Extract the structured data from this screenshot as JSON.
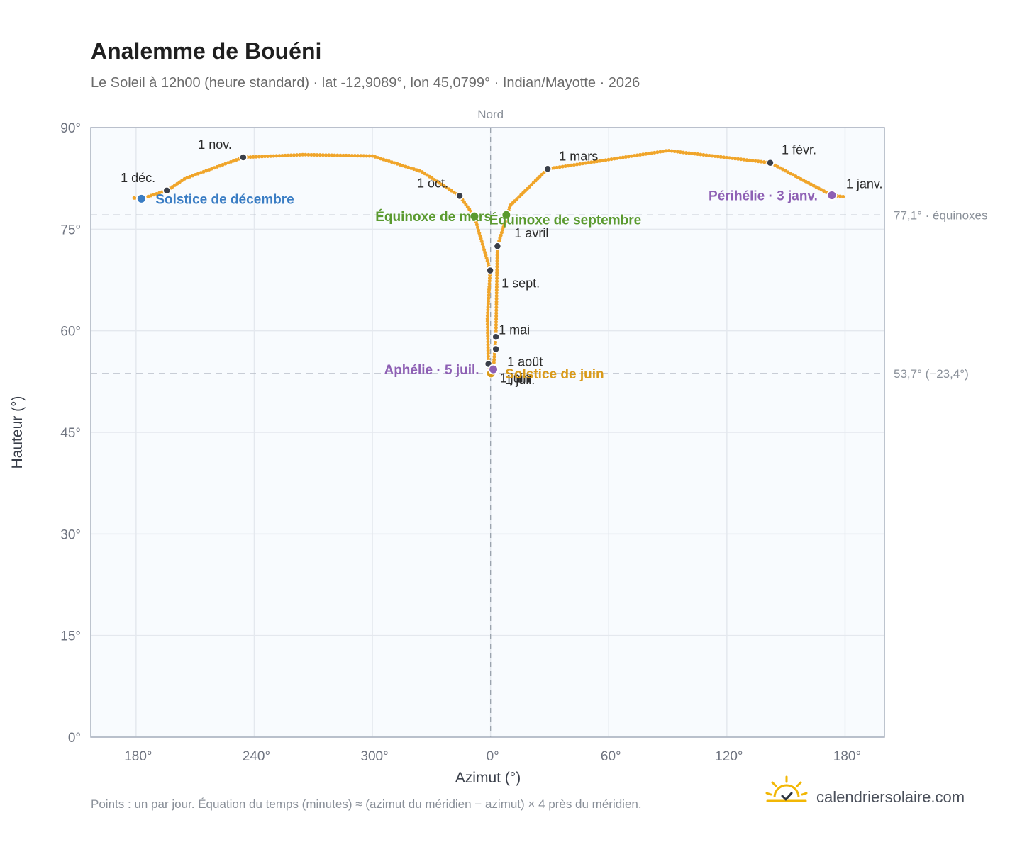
{
  "header": {
    "title": "Analemme de Bouéni",
    "subtitle": "Le Soleil à 12h00 (heure standard) · lat -12,9089°, lon 45,0799° · Indian/Mayotte · 2026"
  },
  "colors": {
    "analemma": "#f0a52a",
    "month_marker": "#3a3f4a",
    "equinox": "#5a9a2f",
    "solstice_december": "#3a7dc4",
    "solstice_june": "#d99a1a",
    "apsis": "#8e60b4",
    "grid": "#e4e8ee",
    "plot_background": "#f8fbfe",
    "plot_border": "#a7b0bd"
  },
  "chart_data": {
    "type": "scatter",
    "title": "Analemme de Bouéni",
    "xlabel": "Azimut (°)",
    "ylabel": "Hauteur (°)",
    "x_ticks": [
      {
        "az": 180,
        "label": "180°"
      },
      {
        "az": 240,
        "label": "240°"
      },
      {
        "az": 300,
        "label": "300°"
      },
      {
        "az": 0,
        "label": "0°"
      },
      {
        "az": 60,
        "label": "60°"
      },
      {
        "az": 120,
        "label": "120°"
      },
      {
        "az": 180,
        "label": "180°",
        "side": "east"
      }
    ],
    "y_ticks": [
      {
        "value": 0,
        "label": "0°"
      },
      {
        "value": 15,
        "label": "15°"
      },
      {
        "value": 30,
        "label": "30°"
      },
      {
        "value": 45,
        "label": "45°"
      },
      {
        "value": 60,
        "label": "60°"
      },
      {
        "value": 75,
        "label": "75°"
      },
      {
        "value": 90,
        "label": "90°"
      }
    ],
    "ylim": [
      0,
      90
    ],
    "x_range_offset_from_north": [
      -203,
      200
    ],
    "grid": true,
    "north_line": {
      "label": "Nord"
    },
    "reference_lines": [
      {
        "altitude": 77.1,
        "label": "77,1° · équinoxes"
      },
      {
        "altitude": 53.7,
        "label": "53,7° (−23,4°)"
      }
    ],
    "path_vertices": [
      {
        "az": 179,
        "alt": 79.8
      },
      {
        "az": 173.3,
        "alt": 80.0
      },
      {
        "az": 142,
        "alt": 84.8
      },
      {
        "az": 90,
        "alt": 86.6
      },
      {
        "az": 29,
        "alt": 83.9
      },
      {
        "az": 10,
        "alt": 78.5
      },
      {
        "az": 3.5,
        "alt": 72.5
      },
      {
        "az": 2.7,
        "alt": 59.1
      },
      {
        "az": 1.4,
        "alt": 54.3
      },
      {
        "az": 0.2,
        "alt": 53.7
      },
      {
        "az": -1.1,
        "alt": 55.1
      },
      {
        "az": -1.6,
        "alt": 61.9
      },
      {
        "az": -0.2,
        "alt": 68.9
      },
      {
        "az": -8.2,
        "alt": 76.9
      },
      {
        "az": -15.7,
        "alt": 79.9
      },
      {
        "az": -35,
        "alt": 83.5
      },
      {
        "az": -60,
        "alt": 85.8
      },
      {
        "az": -95,
        "alt": 86.0
      },
      {
        "az": -125.6,
        "alt": 85.6
      },
      {
        "az": -155,
        "alt": 82.5
      },
      {
        "az": -164.4,
        "alt": 80.7
      },
      {
        "az": -177.3,
        "alt": 79.5
      },
      {
        "az": -181,
        "alt": 79.6
      }
    ],
    "month_markers": [
      {
        "label": "1 janv.",
        "az": 173.3,
        "alt": 80.0,
        "anchor": "start",
        "dx": 20,
        "dy": -10
      },
      {
        "label": "1 févr.",
        "az": 142.0,
        "alt": 84.8,
        "anchor": "start",
        "dx": 16,
        "dy": -12
      },
      {
        "label": "1 mars",
        "az": 29.0,
        "alt": 83.9,
        "anchor": "start",
        "dx": 16,
        "dy": -12
      },
      {
        "label": "1 avril",
        "az": 3.5,
        "alt": 72.5,
        "anchor": "start",
        "dx": 24,
        "dy": -12
      },
      {
        "label": "1 mai",
        "az": 2.7,
        "alt": 59.1,
        "anchor": "start",
        "dx": 4,
        "dy": -4
      },
      {
        "label": "1 juin",
        "az": -1.1,
        "alt": 55.1,
        "anchor": "start",
        "dx": 16,
        "dy": 26
      },
      {
        "label": "1 juil.",
        "az": 0.2,
        "alt": 53.7,
        "anchor": "start",
        "dx": 20,
        "dy": 15
      },
      {
        "label": "1 août",
        "az": 2.7,
        "alt": 57.3,
        "anchor": "start",
        "dx": 16,
        "dy": 24
      },
      {
        "label": "1 sept.",
        "az": -0.2,
        "alt": 68.9,
        "anchor": "start",
        "dx": 16,
        "dy": 24
      },
      {
        "label": "1 oct.",
        "az": -15.7,
        "alt": 79.9,
        "anchor": "end",
        "dx": -16,
        "dy": -12
      },
      {
        "label": "1 nov.",
        "az": -125.6,
        "alt": 85.6,
        "anchor": "end",
        "dx": -16,
        "dy": -12
      },
      {
        "label": "1 déc.",
        "az": -164.4,
        "alt": 80.7,
        "anchor": "end",
        "dx": -16,
        "dy": -12
      }
    ],
    "events": [
      {
        "label": "Périhélie · 3 janv.",
        "az": 173.3,
        "alt": 80.0,
        "kind": "apsis",
        "anchor": "end",
        "dx": -20,
        "dy": 7
      },
      {
        "label": "Équinoxe de mars",
        "az": -8.2,
        "alt": 76.9,
        "kind": "equinox",
        "anchor": "end",
        "dx": 24,
        "dy": 7
      },
      {
        "label": "Solstice de juin",
        "az": 0.2,
        "alt": 53.7,
        "kind": "solstice_june",
        "anchor": "start",
        "dx": 20,
        "dy": 7
      },
      {
        "label": "Aphélie · 5 juil.",
        "az": 1.4,
        "alt": 54.3,
        "kind": "apsis",
        "anchor": "end",
        "dx": -20,
        "dy": 7
      },
      {
        "label": "Équinoxe de septembre",
        "az": 8.0,
        "alt": 77.1,
        "kind": "equinox",
        "anchor": "start",
        "dx": -24,
        "dy": 13
      },
      {
        "label": "Solstice de décembre",
        "az": -177.3,
        "alt": 79.5,
        "kind": "solstice_december",
        "anchor": "start",
        "dx": 20,
        "dy": 7
      }
    ]
  },
  "footer": {
    "note": "Points : un par jour. Équation du temps (minutes) ≈ (azimut du méridien − azimut) × 4 près du méridien.",
    "brand_name": "calendriersolaire.com",
    "brand_icon": "sun-logo-icon"
  }
}
